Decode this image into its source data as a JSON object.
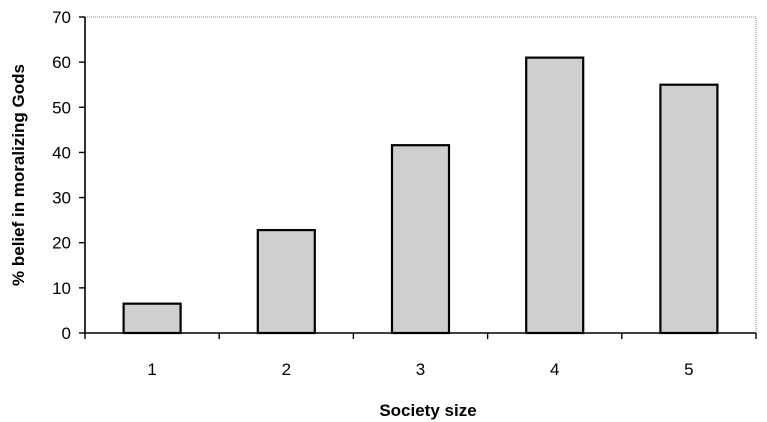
{
  "chart_data": {
    "type": "bar",
    "categories": [
      "1",
      "2",
      "3",
      "4",
      "5"
    ],
    "values": [
      6.5,
      22.8,
      41.6,
      61,
      55
    ],
    "title": "",
    "xlabel": "Society size",
    "ylabel": "% belief in moralizing Gods",
    "ylim": [
      0,
      70
    ],
    "yticks": [
      0,
      10,
      20,
      30,
      40,
      50,
      60,
      70
    ],
    "grid": false,
    "bar_color": "#cfcfcf",
    "bar_edge_color": "#000000"
  }
}
